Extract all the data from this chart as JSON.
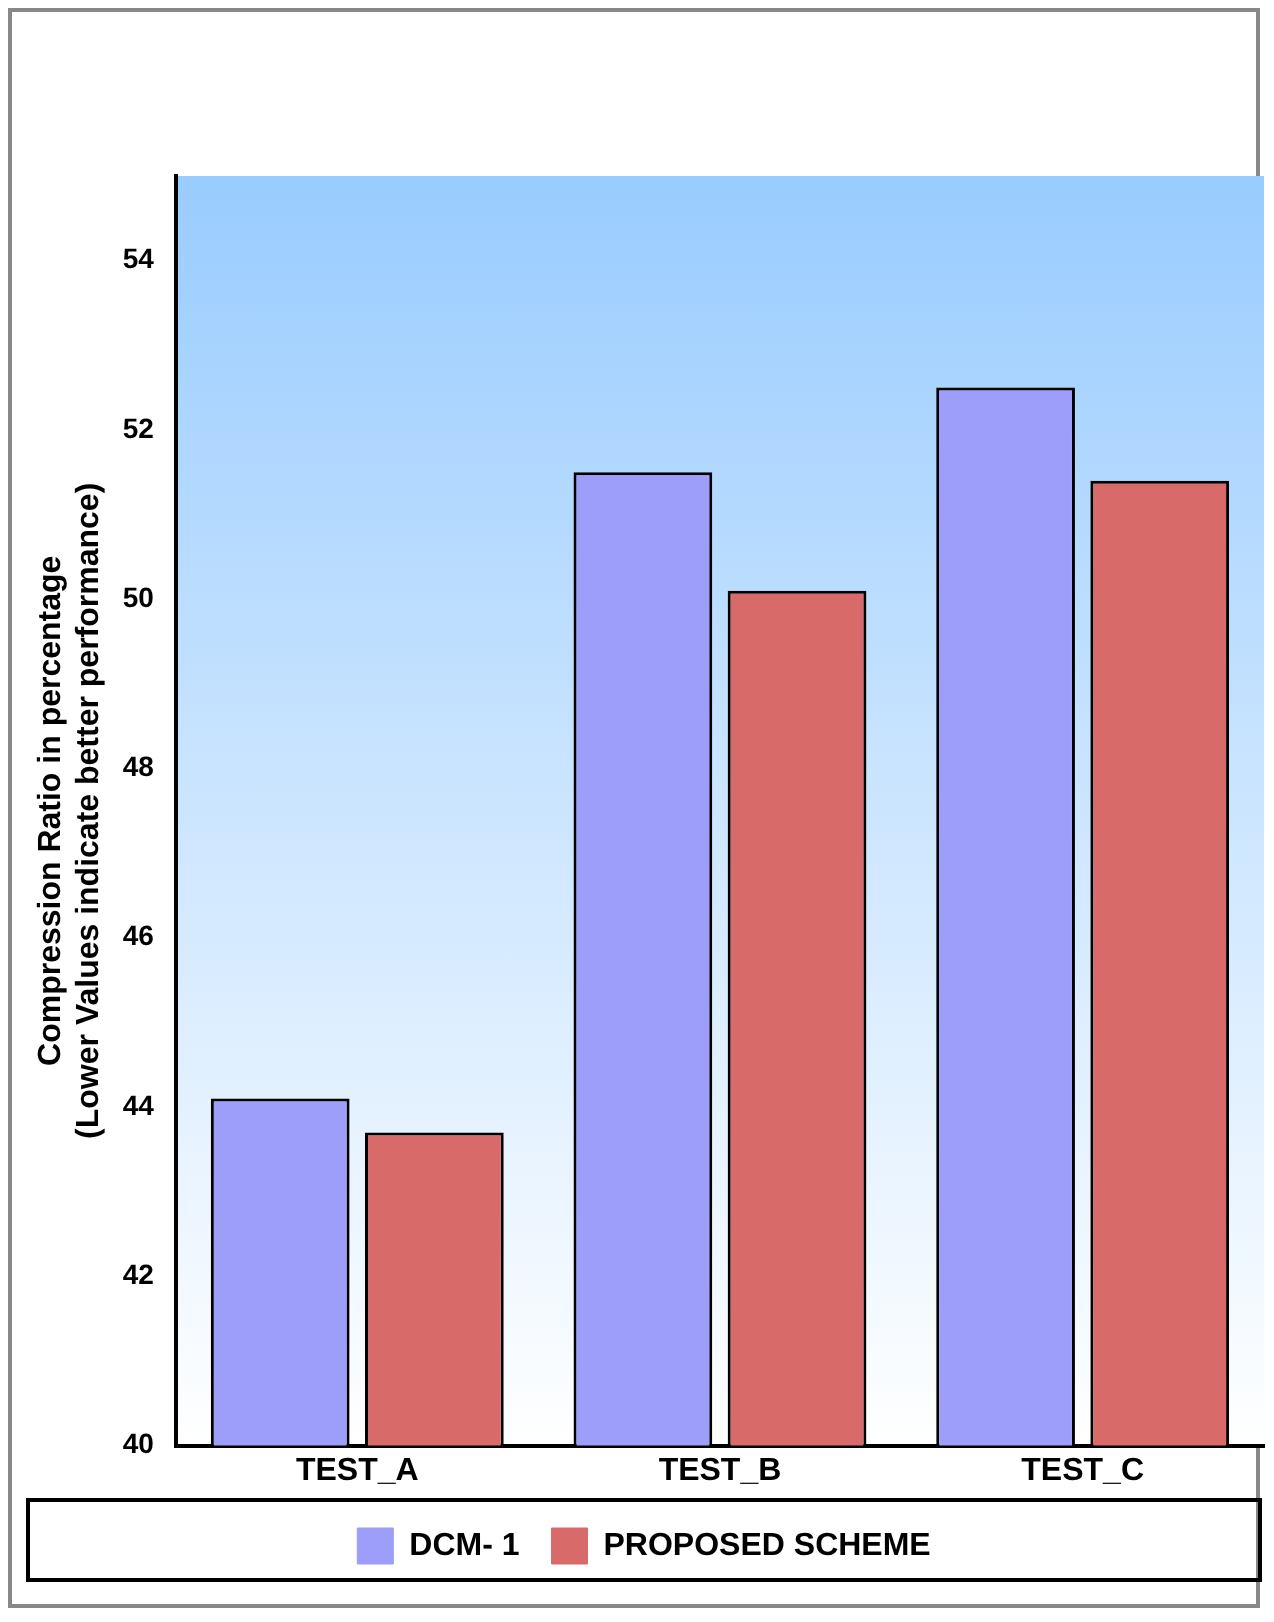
{
  "chart_data": {
    "type": "bar",
    "ylabel": "Compression Ratio in percentage\n(Lower Values indicate better performance)",
    "categories": [
      "TEST_A",
      "TEST_B",
      "TEST_C"
    ],
    "series": [
      {
        "name": "DCM- 1",
        "color": "#9d9dfa",
        "values": [
          44.1,
          51.5,
          52.5
        ]
      },
      {
        "name": "PROPOSED SCHEME",
        "color": "#d86a6a",
        "values": [
          43.7,
          50.1,
          51.4
        ]
      }
    ],
    "ylim": [
      40,
      55
    ],
    "yticks": [
      40,
      42,
      44,
      46,
      48,
      50,
      52,
      54
    ],
    "legend": "bottom"
  }
}
